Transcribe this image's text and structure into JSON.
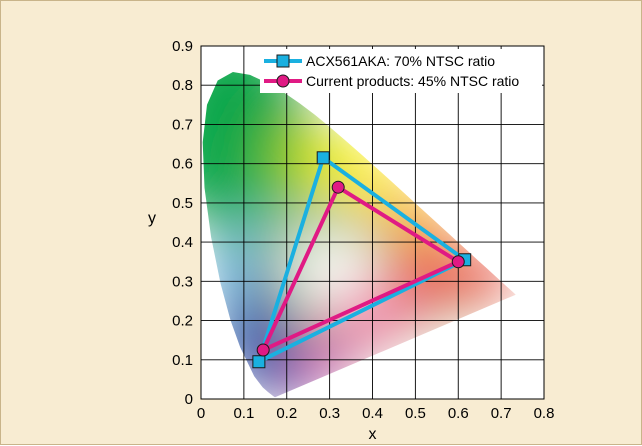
{
  "chart_data": {
    "type": "line",
    "title": "",
    "xlabel": "x",
    "ylabel": "y",
    "xlim": [
      0,
      0.8
    ],
    "ylim": [
      0,
      0.9
    ],
    "xticks": [
      "0",
      "0.1",
      "0.2",
      "0.3",
      "0.4",
      "0.5",
      "0.6",
      "0.7",
      "0.8"
    ],
    "yticks": [
      "0",
      "0.1",
      "0.2",
      "0.3",
      "0.4",
      "0.5",
      "0.6",
      "0.7",
      "0.8",
      "0.9"
    ],
    "grid": true,
    "legend_position": "top-right",
    "background": "CIE 1931 chromaticity diagram",
    "series": [
      {
        "name": "ACX561AKA: 70% NTSC ratio",
        "color": "#1ab0e0",
        "marker": "square",
        "closed": true,
        "x": [
          0.285,
          0.615,
          0.135
        ],
        "y": [
          0.615,
          0.355,
          0.095
        ]
      },
      {
        "name": "Current products: 45% NTSC ratio",
        "color": "#e01a84",
        "marker": "circle",
        "closed": true,
        "x": [
          0.32,
          0.6,
          0.145
        ],
        "y": [
          0.54,
          0.35,
          0.125
        ]
      }
    ]
  }
}
